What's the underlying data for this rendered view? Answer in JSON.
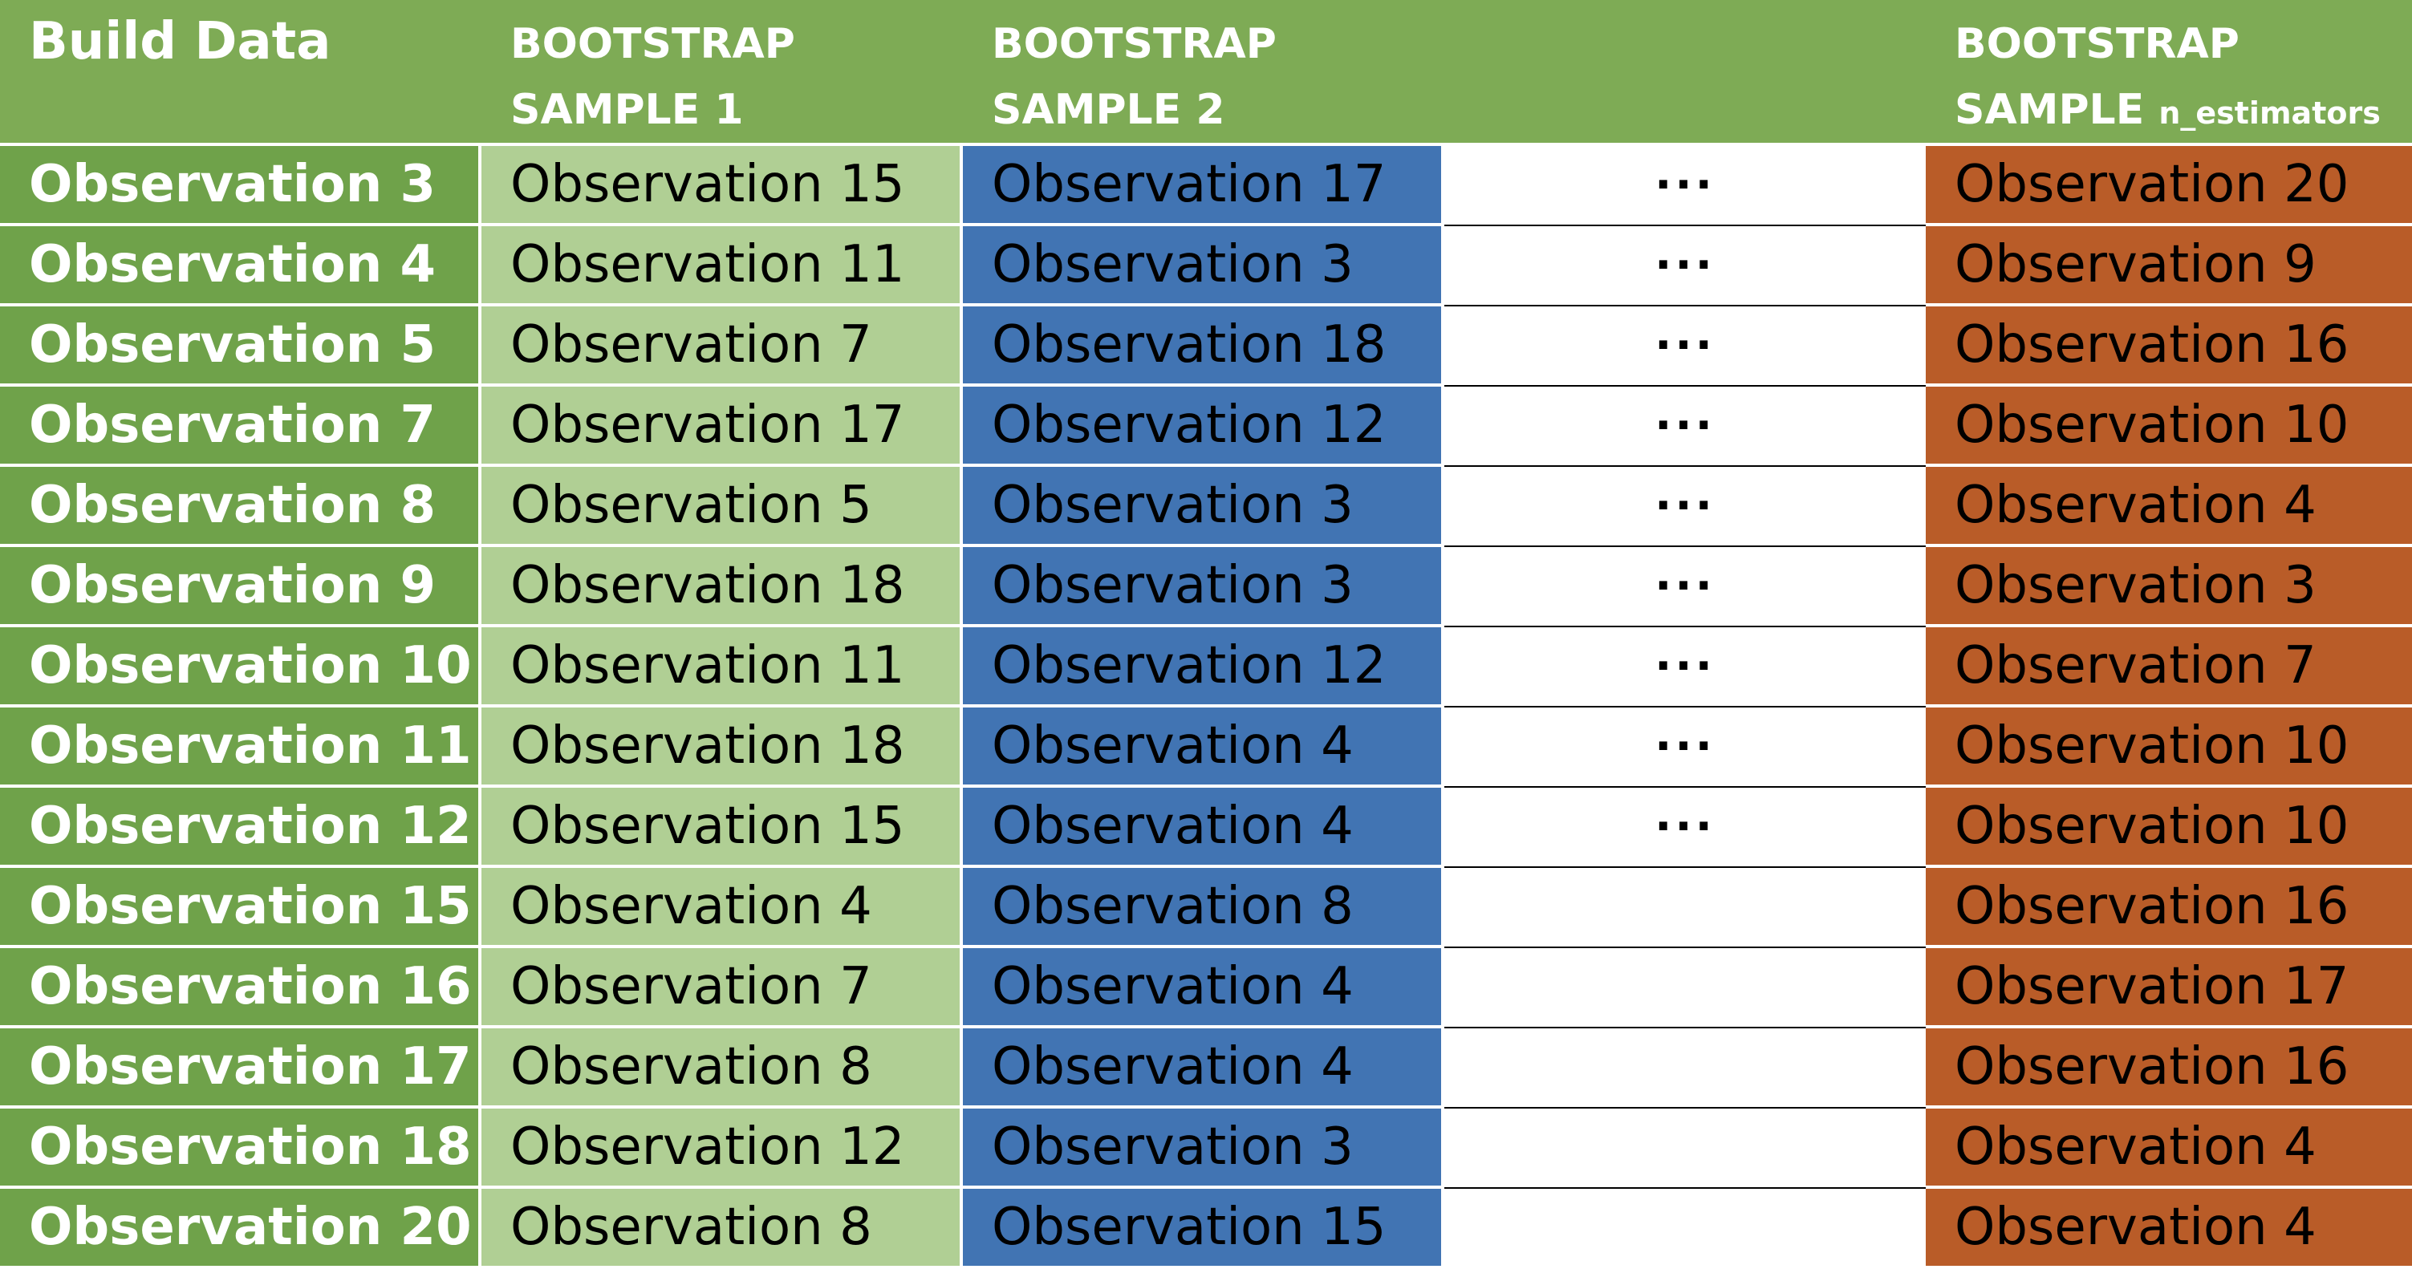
{
  "headers": {
    "build": "Build Data",
    "s1_line1": "BOOTSTRAP",
    "s1_line2": "SAMPLE 1",
    "s2_line1": "BOOTSTRAP",
    "s2_line2": "SAMPLE 2",
    "sn_line1": "BOOTSTRAP",
    "sn_line2": "SAMPLE",
    "sn_sub": "n_estimators"
  },
  "rows": [
    {
      "build": "Observation 3",
      "s1": "Observation 15",
      "s2": "Observation 17",
      "dots": "···",
      "sn": "Observation 20"
    },
    {
      "build": "Observation 4",
      "s1": "Observation 11",
      "s2": "Observation 3",
      "dots": "···",
      "sn": "Observation 9"
    },
    {
      "build": "Observation 5",
      "s1": "Observation 7",
      "s2": "Observation 18",
      "dots": "···",
      "sn": "Observation 16"
    },
    {
      "build": "Observation 7",
      "s1": "Observation 17",
      "s2": "Observation 12",
      "dots": "···",
      "sn": "Observation 10"
    },
    {
      "build": "Observation 8",
      "s1": "Observation 5",
      "s2": "Observation 3",
      "dots": "···",
      "sn": "Observation 4"
    },
    {
      "build": "Observation 9",
      "s1": "Observation 18",
      "s2": "Observation 3",
      "dots": "···",
      "sn": "Observation 3"
    },
    {
      "build": "Observation 10",
      "s1": "Observation 11",
      "s2": "Observation 12",
      "dots": "···",
      "sn": "Observation 7"
    },
    {
      "build": "Observation 11",
      "s1": "Observation 18",
      "s2": "Observation 4",
      "dots": "···",
      "sn": "Observation 10"
    },
    {
      "build": "Observation 12",
      "s1": "Observation 15",
      "s2": "Observation 4",
      "dots": "···",
      "sn": "Observation 10"
    },
    {
      "build": "Observation 15",
      "s1": "Observation 4",
      "s2": "Observation 8",
      "dots": "",
      "sn": "Observation 16"
    },
    {
      "build": "Observation 16",
      "s1": "Observation 7",
      "s2": "Observation 4",
      "dots": "",
      "sn": "Observation 17"
    },
    {
      "build": "Observation 17",
      "s1": "Observation 8",
      "s2": "Observation 4",
      "dots": "",
      "sn": "Observation 16"
    },
    {
      "build": "Observation 18",
      "s1": "Observation 12",
      "s2": "Observation 3",
      "dots": "",
      "sn": "Observation 4"
    },
    {
      "build": "Observation 20",
      "s1": "Observation 8",
      "s2": "Observation 15",
      "dots": "",
      "sn": "Observation 4"
    }
  ],
  "colors": {
    "header_green": "#7eab55",
    "build_green": "#6fa24a",
    "sample1_light_green": "#b0cf94",
    "sample2_blue": "#4174b3",
    "sample_n_orange": "#b95c28"
  }
}
